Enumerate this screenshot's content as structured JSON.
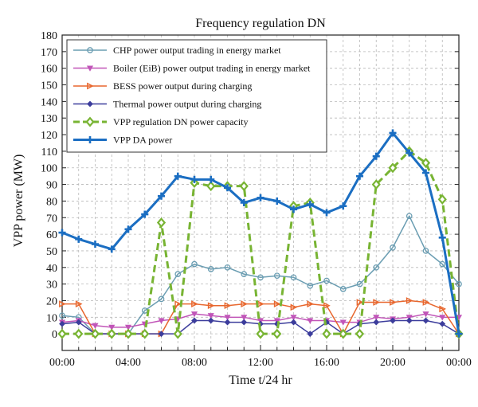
{
  "chart_data": {
    "type": "line",
    "title": "Frequency regulation DN",
    "xlabel": "Time t/24 hr",
    "ylabel": "VPP power (MW)",
    "xlim": [
      0,
      24
    ],
    "ylim": [
      -10,
      180
    ],
    "x": [
      0,
      1,
      2,
      3,
      4,
      5,
      6,
      7,
      8,
      9,
      10,
      11,
      12,
      13,
      14,
      15,
      16,
      17,
      18,
      19,
      20,
      21,
      22,
      23,
      24
    ],
    "xticks": [
      {
        "value": 0,
        "label": "00:00"
      },
      {
        "value": 4,
        "label": "04:00"
      },
      {
        "value": 8,
        "label": "08:00"
      },
      {
        "value": 12,
        "label": "12:00"
      },
      {
        "value": 16,
        "label": "16:00"
      },
      {
        "value": 20,
        "label": "20:00"
      },
      {
        "value": 24,
        "label": "00:00"
      }
    ],
    "yticks": [
      0,
      10,
      20,
      30,
      40,
      50,
      60,
      70,
      80,
      90,
      100,
      110,
      120,
      130,
      140,
      150,
      160,
      170,
      180
    ],
    "grid": true,
    "legend_position": "top-left",
    "series": [
      {
        "name": "CHP power output trading in energy market",
        "color": "#6a9db2",
        "marker": "circle",
        "dash": "solid",
        "width": 1.5,
        "values": [
          11,
          10,
          0,
          0,
          0,
          14,
          21,
          36,
          42,
          39,
          40,
          36,
          34,
          35,
          34,
          29,
          32,
          27,
          30,
          40,
          52,
          71,
          50,
          42,
          30
        ]
      },
      {
        "name": "Boiler (EiB) power output trading in energy market",
        "color": "#c155b8",
        "marker": "triangle-down",
        "dash": "solid",
        "width": 1.5,
        "values": [
          7,
          8,
          5,
          4,
          4,
          6,
          8,
          9,
          12,
          11,
          10,
          10,
          8,
          8,
          10,
          8,
          8,
          7,
          7,
          10,
          9,
          10,
          12,
          10,
          10
        ]
      },
      {
        "name": "BESS power output during charging",
        "color": "#e8672e",
        "marker": "triangle-right",
        "dash": "solid",
        "width": 1.5,
        "values": [
          18,
          18,
          0,
          0,
          0,
          0,
          0,
          18,
          18,
          17,
          17,
          18,
          18,
          18,
          16,
          18,
          17,
          0,
          19,
          19,
          19,
          20,
          19,
          15,
          0
        ]
      },
      {
        "name": "Thermal power output during charging",
        "color": "#3c3d9c",
        "marker": "diamond",
        "dash": "solid",
        "width": 1.5,
        "values": [
          6,
          7,
          0,
          0,
          0,
          0,
          0,
          0,
          8,
          8,
          7,
          7,
          6,
          6,
          7,
          0,
          7,
          0,
          6,
          7,
          8,
          8,
          8,
          6,
          0
        ]
      },
      {
        "name": "VPP regulation DN power capacity",
        "color": "#78b433",
        "marker": "diamond-open",
        "dash": "dashed",
        "width": 3,
        "values": [
          0,
          0,
          0,
          0,
          0,
          0,
          67,
          0,
          91,
          89,
          89,
          89,
          0,
          0,
          77,
          79,
          0,
          0,
          0,
          90,
          100,
          110,
          103,
          81,
          0
        ]
      },
      {
        "name": "VPP DA power",
        "color": "#1b6ec2",
        "marker": "plus",
        "dash": "solid",
        "width": 3,
        "values": [
          61,
          57,
          54,
          51,
          63,
          72,
          83,
          95,
          93,
          93,
          88,
          79,
          82,
          80,
          75,
          78,
          73,
          77,
          95,
          107,
          121,
          109,
          97,
          58,
          0
        ]
      }
    ]
  }
}
